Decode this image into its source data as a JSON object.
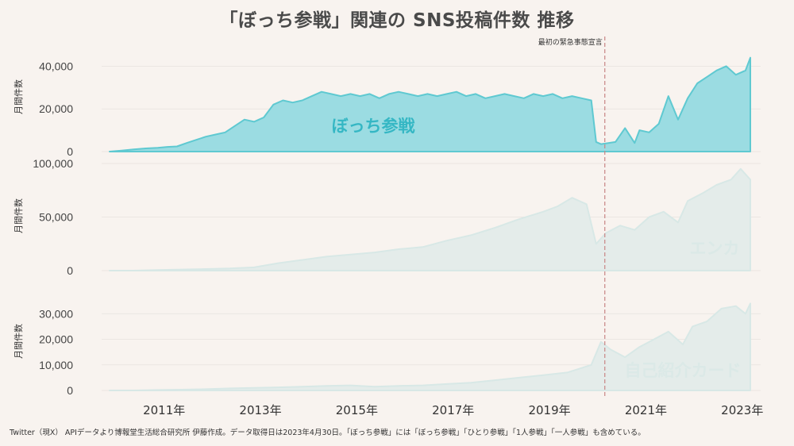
{
  "title": "「ぼっち参戦」関連の SNS投稿件数 推移",
  "footnote": "Twitter（現X） APIデータより博報堂生活総合研究所 伊藤作成。データ取得日は2023年4月30日。「ぼっち参戦」には「ぼっち参戦」「ひとり参戦」「1人参戦」「一人参戦」も含めている。",
  "event_label": "最初の緊急事態宣言",
  "colors": {
    "accent": "#5fc9d1",
    "accent_fill": "#9bdce2",
    "faded_fill": "#e4ecea",
    "faded_line": "#d8e8e6",
    "event_line": "#c98585",
    "grid": "#ebe6e2"
  },
  "chart_data": [
    {
      "type": "area",
      "panel": "top",
      "label": "ぼっち参戦",
      "ylabel": "月間件数",
      "ylim": [
        0,
        45000
      ],
      "yticks": [
        "0",
        "20,000",
        "40,000"
      ],
      "ytick_values": [
        0,
        20000,
        40000
      ],
      "x": [
        2010.0,
        2010.25,
        2010.5,
        2010.75,
        2011.0,
        2011.2,
        2011.4,
        2011.6,
        2011.8,
        2012.0,
        2012.2,
        2012.4,
        2012.6,
        2012.8,
        2013.0,
        2013.1,
        2013.2,
        2013.4,
        2013.6,
        2013.8,
        2014.0,
        2014.2,
        2014.4,
        2014.6,
        2014.8,
        2015.0,
        2015.2,
        2015.4,
        2015.6,
        2015.8,
        2016.0,
        2016.2,
        2016.4,
        2016.6,
        2016.8,
        2017.0,
        2017.2,
        2017.4,
        2017.6,
        2017.8,
        2018.0,
        2018.2,
        2018.4,
        2018.6,
        2018.8,
        2019.0,
        2019.2,
        2019.4,
        2019.6,
        2019.8,
        2020.0,
        2020.1,
        2020.2,
        2020.3,
        2020.5,
        2020.7,
        2020.9,
        2021.0,
        2021.2,
        2021.4,
        2021.6,
        2021.8,
        2022.0,
        2022.2,
        2022.4,
        2022.6,
        2022.8,
        2023.0,
        2023.2,
        2023.3
      ],
      "values": [
        0,
        500,
        1000,
        1500,
        1800,
        2200,
        2400,
        4000,
        5500,
        7000,
        8000,
        9000,
        12000,
        15000,
        14000,
        15000,
        16000,
        22000,
        24000,
        23000,
        24000,
        26000,
        28000,
        27000,
        26000,
        27000,
        26000,
        27000,
        25000,
        27000,
        28000,
        27000,
        26000,
        27000,
        26000,
        27000,
        28000,
        26000,
        27000,
        25000,
        26000,
        27000,
        26000,
        25000,
        27000,
        26000,
        27000,
        25000,
        26000,
        25000,
        24000,
        4500,
        3500,
        3800,
        4500,
        11000,
        4000,
        10000,
        9000,
        13000,
        26000,
        15000,
        25000,
        32000,
        35000,
        38000,
        40000,
        36000,
        38000,
        44000
      ],
      "color": "#5fc9d1"
    },
    {
      "type": "area",
      "panel": "middle",
      "label": "エンカ",
      "ylabel": "月間件数",
      "ylim": [
        0,
        100000
      ],
      "yticks": [
        "0",
        "50,000",
        "100,000"
      ],
      "ytick_values": [
        0,
        50000,
        100000
      ],
      "x": [
        2010.0,
        2010.5,
        2011.0,
        2011.5,
        2012.0,
        2012.5,
        2013.0,
        2013.5,
        2014.0,
        2014.5,
        2015.0,
        2015.5,
        2016.0,
        2016.5,
        2017.0,
        2017.5,
        2018.0,
        2018.5,
        2019.0,
        2019.3,
        2019.6,
        2019.9,
        2020.1,
        2020.3,
        2020.6,
        2020.9,
        2021.2,
        2021.5,
        2021.8,
        2022.0,
        2022.3,
        2022.6,
        2022.9,
        2023.1,
        2023.3
      ],
      "values": [
        0,
        0,
        500,
        1000,
        1500,
        2000,
        3000,
        7000,
        10000,
        13000,
        15000,
        17000,
        20000,
        22000,
        28000,
        33000,
        40000,
        48000,
        55000,
        60000,
        68000,
        62000,
        25000,
        35000,
        42000,
        38000,
        50000,
        55000,
        45000,
        65000,
        72000,
        80000,
        85000,
        95000,
        85000
      ],
      "color": "#e4ecea"
    },
    {
      "type": "area",
      "panel": "bottom",
      "label": "自己紹介カード",
      "ylabel": "月間件数",
      "ylim": [
        0,
        36000
      ],
      "yticks": [
        "0",
        "10,000",
        "20,000",
        "30,000"
      ],
      "ytick_values": [
        0,
        10000,
        20000,
        30000
      ],
      "x": [
        2010.0,
        2010.5,
        2011.0,
        2011.5,
        2012.0,
        2012.5,
        2013.0,
        2013.5,
        2014.0,
        2014.5,
        2015.0,
        2015.5,
        2016.0,
        2016.5,
        2017.0,
        2017.5,
        2018.0,
        2018.5,
        2019.0,
        2019.5,
        2020.0,
        2020.2,
        2020.4,
        2020.7,
        2021.0,
        2021.3,
        2021.6,
        2021.9,
        2022.1,
        2022.4,
        2022.7,
        2023.0,
        2023.2,
        2023.3
      ],
      "values": [
        0,
        0,
        200,
        300,
        500,
        800,
        1000,
        1200,
        1500,
        1800,
        2000,
        1500,
        1800,
        2000,
        2500,
        3000,
        4000,
        5000,
        6000,
        7000,
        10000,
        19000,
        16000,
        13000,
        17000,
        20000,
        23000,
        18000,
        25000,
        27000,
        32000,
        33000,
        30000,
        34000
      ],
      "color": "#e4ecea"
    }
  ],
  "x_axis": {
    "ticks": [
      "2011年",
      "2013年",
      "2015年",
      "2017年",
      "2019年",
      "2021年",
      "2023年"
    ],
    "tick_values": [
      2011,
      2013,
      2015,
      2017,
      2019,
      2021,
      2023
    ],
    "xlim": [
      2010.0,
      2023.35
    ]
  },
  "event_x": 2020.28
}
